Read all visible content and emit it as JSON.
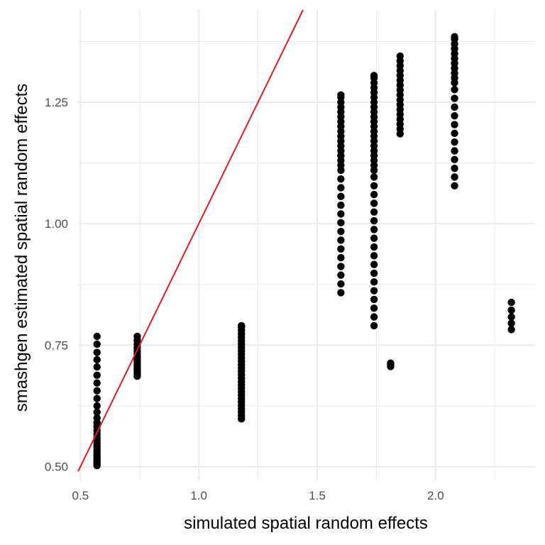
{
  "chart_data": {
    "type": "scatter",
    "xlabel": "simulated spatial random effects",
    "ylabel": "smashgen estimated spatial random effects",
    "xlim": [
      0.49,
      2.42
    ],
    "ylim": [
      0.47,
      1.44
    ],
    "x_ticks": [
      0.5,
      1.0,
      1.5,
      2.0
    ],
    "x_tick_labels": [
      "0.5",
      "1.0",
      "1.5",
      "2.0"
    ],
    "y_ticks": [
      0.5,
      0.75,
      1.0,
      1.25
    ],
    "y_tick_labels": [
      "0.50",
      "0.75",
      "1.00",
      "1.25"
    ],
    "grid": true,
    "legend": "none",
    "colors": {
      "points": "#000000",
      "line": "#e41a1c",
      "grid": "#ebebeb",
      "tick_text": "#4d4d4d"
    },
    "reference_line": {
      "type": "identity",
      "slope": 1,
      "intercept": 0
    },
    "series": [
      {
        "points": [
          {
            "x": 0.57,
            "y": [
              0.502,
              0.505,
              0.508,
              0.511,
              0.515,
              0.519,
              0.523,
              0.527,
              0.532,
              0.537,
              0.542,
              0.548,
              0.554,
              0.56,
              0.567,
              0.574,
              0.582,
              0.59,
              0.6,
              0.612,
              0.625,
              0.64,
              0.656,
              0.672,
              0.688,
              0.705,
              0.72,
              0.735,
              0.752,
              0.768
            ]
          },
          {
            "x": 0.74,
            "y": [
              0.686,
              0.69,
              0.694,
              0.698,
              0.702,
              0.706,
              0.71,
              0.715,
              0.72,
              0.726,
              0.732,
              0.738,
              0.745,
              0.752,
              0.76,
              0.768
            ]
          },
          {
            "x": 1.18,
            "y": [
              0.598,
              0.605,
              0.612,
              0.619,
              0.626,
              0.633,
              0.64,
              0.647,
              0.654,
              0.661,
              0.668,
              0.675,
              0.682,
              0.689,
              0.696,
              0.703,
              0.71,
              0.717,
              0.724,
              0.731,
              0.738,
              0.745,
              0.752,
              0.759,
              0.766,
              0.773,
              0.78,
              0.787,
              0.79
            ]
          },
          {
            "x": 1.6,
            "y": [
              0.858,
              0.876,
              0.894,
              0.912,
              0.93,
              0.948,
              0.966,
              0.984,
              1.002,
              1.02,
              1.038,
              1.056,
              1.074,
              1.092,
              1.11,
              1.12,
              1.13,
              1.14,
              1.15,
              1.16,
              1.17,
              1.18,
              1.19,
              1.2,
              1.21,
              1.22,
              1.23,
              1.24,
              1.25,
              1.26,
              1.265
            ]
          },
          {
            "x": 1.74,
            "y": [
              0.79,
              0.808,
              0.826,
              0.844,
              0.862,
              0.88,
              0.898,
              0.916,
              0.934,
              0.952,
              0.97,
              0.988,
              1.006,
              1.024,
              1.042,
              1.06,
              1.078,
              1.096,
              1.11,
              1.12,
              1.13,
              1.14,
              1.15,
              1.16,
              1.17,
              1.18,
              1.19,
              1.2,
              1.21,
              1.22,
              1.23,
              1.24,
              1.25,
              1.26,
              1.27,
              1.28,
              1.29,
              1.3,
              1.305
            ]
          },
          {
            "x": 1.81,
            "y": [
              0.706,
              0.71,
              0.713
            ]
          },
          {
            "x": 1.85,
            "y": [
              1.185,
              1.195,
              1.205,
              1.215,
              1.225,
              1.235,
              1.245,
              1.255,
              1.265,
              1.275,
              1.285,
              1.295,
              1.305,
              1.315,
              1.325,
              1.335,
              1.345
            ]
          },
          {
            "x": 2.08,
            "y": [
              1.078,
              1.096,
              1.114,
              1.132,
              1.15,
              1.168,
              1.186,
              1.204,
              1.222,
              1.24,
              1.258,
              1.276,
              1.29,
              1.3,
              1.31,
              1.32,
              1.33,
              1.34,
              1.35,
              1.36,
              1.37,
              1.38,
              1.385
            ]
          },
          {
            "x": 2.32,
            "y": [
              0.782,
              0.795,
              0.808,
              0.822,
              0.838
            ]
          }
        ]
      }
    ]
  }
}
